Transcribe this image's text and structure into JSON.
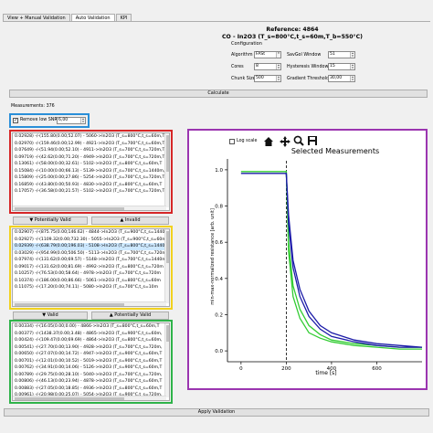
{
  "tabs": [
    {
      "label": "View + Manual Validation"
    },
    {
      "label": "Auto Validation"
    },
    {
      "label": "KPI"
    }
  ],
  "header": {
    "reference": "Reference: 4864",
    "condition": "CO - In2O3 (T_s=800°C,t_s=60m,T_b=550°C)"
  },
  "config": {
    "title": "Configuration",
    "algorithm_label": "Algorithm",
    "algorithm_value": "FASt",
    "cores_label": "Cores",
    "cores_value": "8",
    "chunk_label": "Chunk Size",
    "chunk_value": "500",
    "savgol_label": "SavGol Window",
    "savgol_value": "51",
    "hysteresis_label": "Hysteresis Window",
    "hysteresis_value": "15",
    "gradient_label": "Gradient Threshold",
    "gradient_value": "30,00"
  },
  "calculate_label": "Calculate",
  "measurements_label": "Measurements: 376",
  "snr": {
    "label": "Remove low SNR",
    "value": "6,00",
    "checked": true
  },
  "lists": {
    "red": [
      "0.02928) -/-(155.80(0.00;52.07) - 5060->In2O3 (T_s=800°C,t_s=60m,T",
      "0.02970) -/-(159.46(0.00;12.99) - 4921->In2O3 (T_s=700°C,t_s=60m,T",
      "0.07649) -/-(51.94(0.00;52.10) - 4911->In2O3 (T_s=700°C,t_s=720m,T",
      "0.09719) -/-(42.62(0.00;71.20) - 4949->In2O3 (T_s=700°C,t_s=720m,T",
      "0.13061) -/-(58.00(0.00;32.61) - 5102->In2O3 (T_s=800°C,t_s=60m,T",
      "0.15084) -/-(10.00(0.00;66.13) - 5139->In2O3 (T_s=700°C,t_s=1440m,",
      "0.15809) -/-(25.00(0.00;27.86) - 5254->In2O3 (T_s=700°C,t_s=720m,T",
      "0.16859) -/-(43.80(0.00;50.93) - 4830->In2O3 (T_s=800°C,t_s=60m,T",
      "0.17057) -/-(36.58(0.00;21.57) - 5102->In2O3 (T_s=700°C,t_s=720m,T"
    ],
    "yellow": [
      "0.02907) -/-(875.75(0.00;146.62) - 4844->In2O3 (T_s=900°C,t_s=1440",
      "0.02927) -/-(1109.32(0.00;732.30) - 5055->In2O3 (T_s=900°C,t_s=60m,",
      "0.02939) -/-(638.79(0.00;196.03) - 5108->In2O3 (T_s=800°C,t_s=1440m",
      "0.03029) -/-(954.99(0.00;506.50) - 5113->In2O3 (T_s=700°C,t_s=720m",
      "0.07974) -/-(131.62(0.00;69.57) - 5148->In2O3 (T_s=700°C,t_s=1440m",
      "0.09017) -/-(131.62(0.00;81.69) - 4992->In2O3 (T_s=800°C,t_s=720m",
      "0.10257) -/-(76.53(0.00;58.64) - 4978->In2O3 (T_s=700°C,t_s=720m",
      "0.10374) -/-(186.00(0.00;86.66) - 5061->In2O3 (T_s=800°C,t_s=60m",
      "0.11075) -/-(17.20(0.00;74.11) - 5080->In2O3 (T_s=700°C,t_s=10m"
    ],
    "yellow_selected": 2,
    "green": [
      "0.00334) -/-(16.05(0.00;0.00) - 4866->In2O3 (T_s=800°C,t_s=60m,T",
      "0.00377) -/-(1438.37(0.00;3.48) - 4865->In2O3 (T_s=900°C,t_s=60m,",
      "0.00424) -/-(109.47(0.00;69.69) - 4864->In2O3 (T_s=800°C,t_s=60m,",
      "0.00541) -/-(27.70(0.00;13.90) - 4928->In2O3 (T_s=700°C,t_s=720m,",
      "0.00650) -/-(27.07(0.00;14.72) - 4947->In2O3 (T_s=900°C,t_s=60m,T",
      "0.00701) -/-(12.01(0.00;10.52) - 5019->In2O3 (T_s=900°C,t_s=60m,T",
      "0.00762) -/-(34.91(0.00;14.06) - 5126->In2O3 (T_s=900°C,t_s=60m,T",
      "0.00789) -/-(29.75(0.00;28.10) - 5040->In2O3 (T_s=700°C,t_s=720m,",
      "0.00806) -/-(46.13(0.00;23.94) - 4878->In2O3 (T_s=700°C,t_s=60m,T",
      "0.00883) -/-(27.05(0.00;18.85) - 4936->In2O3 (T_s=800°C,t_s=60m,T",
      "0.00961) -/-(20.98(0.00;25.07) - 5054->In2O3 (T_s=900°C,t_s=720m,"
    ]
  },
  "buttons": {
    "potentially_valid_top": "Potentially Valid",
    "invalid": "Invalid",
    "valid": "Valid",
    "potentially_valid_bottom": "Potentially Valid",
    "apply_validation": "Apply Validation"
  },
  "plot_toolbar": {
    "logscale_label": "Log scale",
    "icons": [
      "home-icon",
      "move-icon",
      "zoom-icon",
      "save-icon"
    ]
  },
  "colors": {
    "red_frame": "#d62728",
    "blue_frame": "#2a8fd8",
    "yellow_frame": "#f2d21e",
    "green_frame": "#2fb34a",
    "purple_frame": "#9b35b0",
    "series_green": "#33cc33",
    "series_blue": "#1c1ca8"
  },
  "chart_data": {
    "type": "line",
    "title": "Selected Measurements",
    "xlabel": "time [s]",
    "ylabel": "min-max-normalized resistance [arb. unit]",
    "xlim": [
      -60,
      800
    ],
    "ylim": [
      -0.06,
      1.06
    ],
    "xticks": [
      0,
      200,
      400,
      600
    ],
    "yticks": [
      0.0,
      0.2,
      0.4,
      0.6,
      0.8,
      1.0
    ],
    "ytick_labels": [
      "0.0",
      "0.2",
      "0.4",
      "0.6",
      "0.8",
      "1.0"
    ],
    "vline_x": 200,
    "grid": false,
    "series": [
      {
        "color": "#33cc33",
        "x": [
          0,
          200,
          210,
          230,
          260,
          300,
          350,
          400,
          500,
          600,
          700,
          800
        ],
        "y": [
          0.99,
          0.99,
          0.55,
          0.3,
          0.18,
          0.1,
          0.07,
          0.05,
          0.03,
          0.02,
          0.01,
          0.01
        ]
      },
      {
        "color": "#33cc33",
        "x": [
          0,
          200,
          210,
          230,
          260,
          300,
          350,
          400,
          500,
          600,
          700,
          800
        ],
        "y": [
          0.99,
          0.99,
          0.6,
          0.36,
          0.23,
          0.14,
          0.09,
          0.06,
          0.04,
          0.03,
          0.02,
          0.02
        ]
      },
      {
        "color": "#1c1ca8",
        "x": [
          0,
          200,
          210,
          230,
          260,
          300,
          350,
          400,
          500,
          600,
          700,
          800
        ],
        "y": [
          0.98,
          0.98,
          0.75,
          0.5,
          0.34,
          0.22,
          0.14,
          0.1,
          0.06,
          0.04,
          0.03,
          0.02
        ]
      },
      {
        "color": "#1c1ca8",
        "x": [
          0,
          200,
          210,
          230,
          260,
          300,
          350,
          400,
          500,
          600,
          700,
          800
        ],
        "y": [
          0.98,
          0.98,
          0.7,
          0.46,
          0.3,
          0.19,
          0.12,
          0.08,
          0.05,
          0.03,
          0.02,
          0.02
        ]
      }
    ]
  }
}
